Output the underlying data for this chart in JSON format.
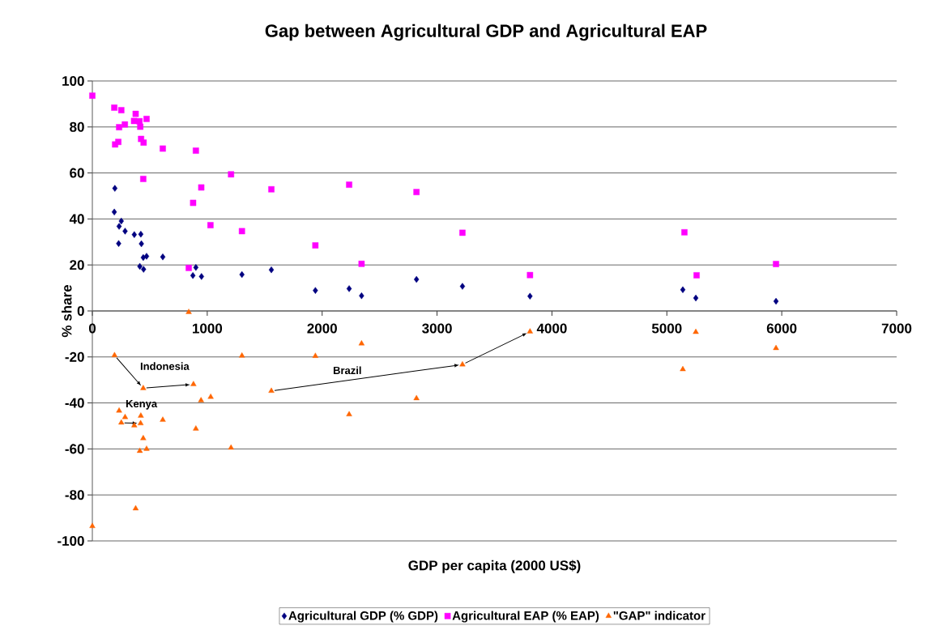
{
  "chart_data": {
    "type": "scatter",
    "title": "Gap between Agricultural GDP and Agricultural EAP",
    "xlabel": "GDP per capita (2000 US$)",
    "ylabel": "% share",
    "xlim": [
      0,
      7000
    ],
    "xticks": [
      0,
      1000,
      2000,
      3000,
      4000,
      5000,
      6000,
      7000
    ],
    "ylim": [
      -100,
      100
    ],
    "yticks": [
      -100,
      -80,
      -60,
      -40,
      -20,
      0,
      20,
      40,
      60,
      80,
      100
    ],
    "grid": "y",
    "legend": "bottom",
    "series": [
      {
        "name": "Agricultural GDP (% GDP)",
        "color": "#000080",
        "marker": "diamond",
        "x": [
          196,
          191,
          252,
          233,
          285,
          365,
          422,
          229,
          427,
          443,
          472,
          613,
          413,
          446,
          901,
          875,
          950,
          1302,
          1558,
          1941,
          2235,
          2343,
          2821,
          3221,
          3809,
          5139,
          5252,
          5950
        ],
        "values": [
          53.3,
          43.0,
          39.1,
          36.8,
          34.7,
          33.2,
          33.4,
          29.3,
          29.2,
          23.2,
          23.8,
          23.5,
          19.4,
          18.1,
          18.9,
          15.4,
          15.0,
          15.8,
          17.9,
          8.9,
          9.7,
          6.6,
          13.7,
          10.7,
          6.4,
          9.2,
          5.6,
          4.2
        ]
      },
      {
        "name": "Agricultural EAP (% EAP)",
        "color": "#ff00ff",
        "marker": "square",
        "x": [
          0,
          191,
          252,
          377,
          472,
          363,
          283,
          233,
          417,
          410,
          226,
          198,
          424,
          446,
          613,
          901,
          1207,
          443,
          948,
          877,
          1028,
          1302,
          839,
          1558,
          2235,
          2821,
          1941,
          2343,
          3221,
          3809,
          5153,
          5259,
          5950
        ],
        "values": [
          93.6,
          88.4,
          87.3,
          85.7,
          83.5,
          82.6,
          81.1,
          79.9,
          80.1,
          82.5,
          73.5,
          72.4,
          74.8,
          73.2,
          70.6,
          69.7,
          59.4,
          57.4,
          53.7,
          47.0,
          37.3,
          34.7,
          18.7,
          52.9,
          54.9,
          51.7,
          28.5,
          20.5,
          34.0,
          15.6,
          34.2,
          15.5,
          20.4
        ]
      },
      {
        "name": "\"GAP\" indicator",
        "color": "#ff6600",
        "marker": "triangle",
        "x": [
          193,
          443,
          880,
          252,
          420,
          1558,
          3221,
          3809,
          946,
          1030,
          1302,
          233,
          285,
          422,
          365,
          613,
          901,
          443,
          413,
          472,
          1207,
          377,
          0,
          839,
          1941,
          2343,
          2235,
          2821,
          5139,
          5252,
          5950
        ],
        "values": [
          -19.3,
          -33.6,
          -31.9,
          -48.6,
          -48.9,
          -34.8,
          -23.3,
          -9.0,
          -38.9,
          -37.4,
          -19.5,
          -43.4,
          -46.2,
          -45.6,
          -49.8,
          -47.4,
          -51.2,
          -55.4,
          -60.9,
          -60.0,
          -59.5,
          -85.9,
          -93.6,
          -0.5,
          -19.6,
          -14.2,
          -45.0,
          -38.0,
          -25.4,
          -9.2,
          -16.2
        ]
      }
    ],
    "annotations": [
      {
        "text": "Indonesia",
        "x": 880,
        "y": -31.9
      },
      {
        "text": "Kenya",
        "x": 420,
        "y": -48.9
      },
      "Brazil"
    ]
  }
}
